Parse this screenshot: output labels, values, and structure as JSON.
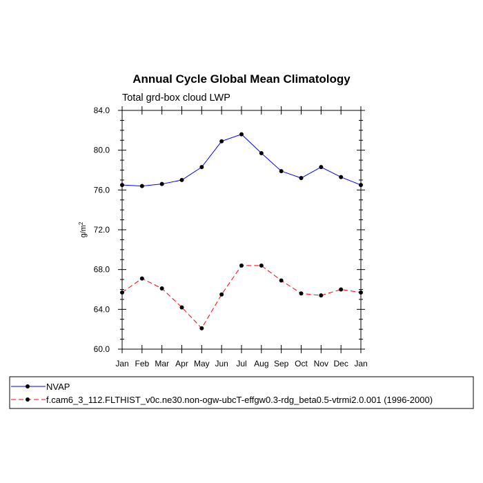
{
  "chart_data": {
    "type": "line",
    "title": "Annual Cycle Global Mean Climatology",
    "subtitle": "Total grd-box cloud LWP",
    "ylabel_main": "g/m",
    "ylabel_sup": "2",
    "xlabel": "",
    "categories": [
      "Jan",
      "Feb",
      "Mar",
      "Apr",
      "May",
      "Jun",
      "Jul",
      "Aug",
      "Sep",
      "Oct",
      "Nov",
      "Dec",
      "Jan"
    ],
    "ylim": [
      60.0,
      84.0
    ],
    "yticks": [
      "60.0",
      "64.0",
      "68.0",
      "72.0",
      "76.0",
      "80.0",
      "84.0"
    ],
    "series": [
      {
        "name": "NVAP",
        "color": "#0000ff",
        "dash": "solid",
        "values": [
          76.5,
          76.4,
          76.6,
          77.0,
          78.3,
          80.9,
          81.6,
          79.7,
          77.9,
          77.2,
          78.3,
          77.3,
          76.5
        ]
      },
      {
        "name": "f.cam6_3_112.FLTHIST_v0c.ne30.non-ogw-ubcT-effgw0.3-rdg_beta0.5-vtrmi2.0.001 (1996-2000)",
        "color": "#ff0000",
        "dash": "dashed",
        "values": [
          65.7,
          67.1,
          66.1,
          64.2,
          62.1,
          65.5,
          68.4,
          68.4,
          66.9,
          65.6,
          65.4,
          66.0,
          65.7
        ]
      }
    ],
    "legend_position": "bottom"
  }
}
